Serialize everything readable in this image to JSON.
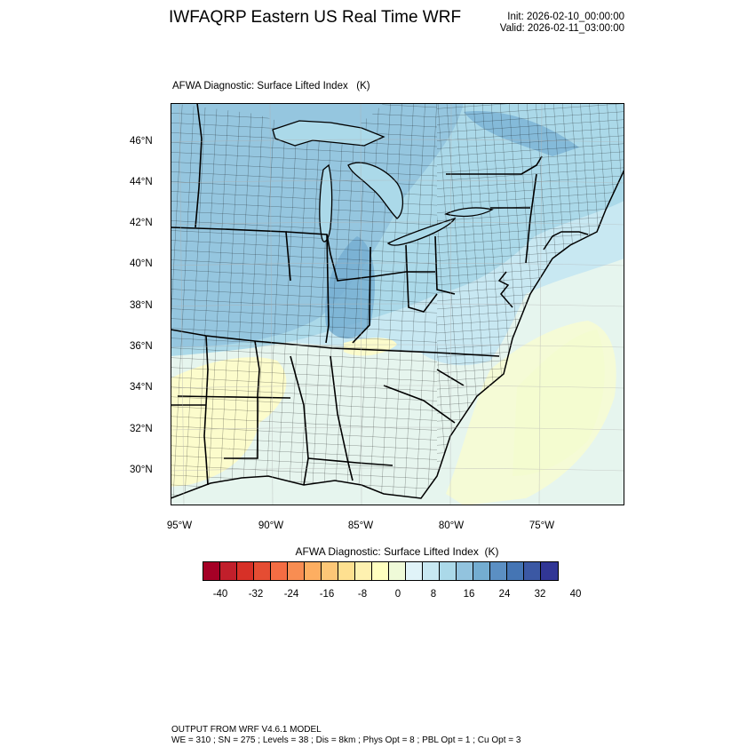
{
  "header": {
    "title": "IWFAQRP Eastern US Real Time WRF",
    "init": "Init: 2026-02-10_00:00:00",
    "valid": "Valid: 2026-02-11_03:00:00"
  },
  "field": {
    "title": "AFWA Diagnostic: Surface Lifted Index   (K)"
  },
  "map": {
    "lat_labels": [
      "46°N",
      "44°N",
      "42°N",
      "40°N",
      "38°N",
      "36°N",
      "34°N",
      "32°N",
      "30°N"
    ],
    "lon_labels": [
      "95°W",
      "90°W",
      "85°W",
      "80°W",
      "75°W"
    ],
    "extent": {
      "lon_min": -95.2,
      "lon_max": -70.2,
      "lat_min": 28.4,
      "lat_max": 47.8
    }
  },
  "colorbar": {
    "title": "AFWA Diagnostic: Surface Lifted Index  (K)",
    "colors": [
      "#a50026",
      "#c11f2b",
      "#d73027",
      "#e54d33",
      "#f46d43",
      "#f88d52",
      "#fdae61",
      "#fdc777",
      "#fee090",
      "#fef1b0",
      "#ffffbf",
      "#effad8",
      "#e0f3f8",
      "#c8e8f2",
      "#abd9e9",
      "#92c3de",
      "#74add1",
      "#5b8fc3",
      "#4575b4",
      "#3b58a4",
      "#313695"
    ],
    "ticks": [
      "-40",
      "-32",
      "-24",
      "-16",
      "-8",
      "0",
      "8",
      "16",
      "24",
      "32",
      "40"
    ]
  },
  "footer": {
    "line1": "OUTPUT FROM WRF V4.6.1 MODEL",
    "line2": "WE = 310 ; SN = 275 ; Levels = 38 ; Dis = 8km ; Phys Opt = 8 ; PBL Opt = 1 ; Cu Opt = 3"
  }
}
